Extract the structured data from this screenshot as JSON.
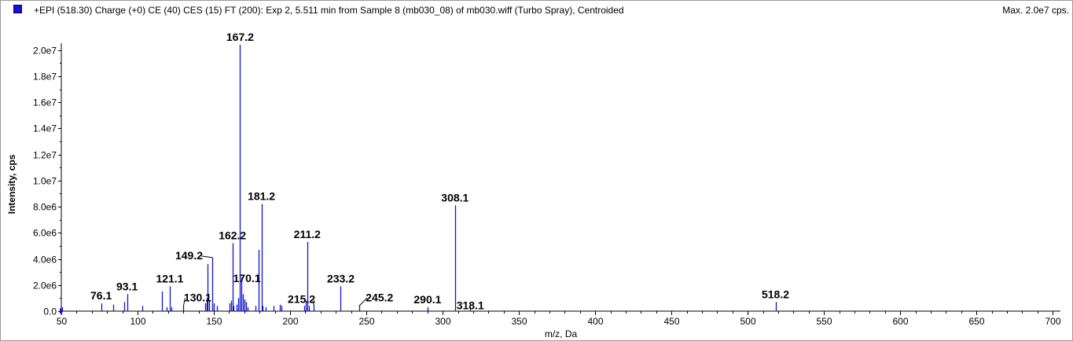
{
  "header": {
    "title": "+EPI (518.30) Charge (+0) CE (40) CES (15) FT (200): Exp 2, 5.511 min from Sample 8 (mb030_08) of mb030.wiff (Turbo Spray), Centroided",
    "max_label": "Max. 2.0e7 cps.",
    "series_color": "#1414c8"
  },
  "chart_data": {
    "type": "bar",
    "title": "",
    "xlabel": "m/z, Da",
    "ylabel": "Intensity, cps",
    "xlim": [
      50,
      705
    ],
    "ylim": [
      0,
      20400000
    ],
    "grid": false,
    "bar_color": "#1414c8",
    "x_ticks": [
      50,
      100,
      150,
      200,
      250,
      300,
      350,
      400,
      450,
      500,
      550,
      600,
      650,
      700
    ],
    "x_tick_labels": [
      "50",
      "100",
      "150",
      "200",
      "250",
      "300",
      "350",
      "400",
      "450",
      "500",
      "550",
      "600",
      "650",
      "700"
    ],
    "y_ticks": [
      0,
      2000000,
      4000000,
      6000000,
      8000000,
      10000000,
      12000000,
      14000000,
      16000000,
      18000000,
      20000000
    ],
    "y_tick_labels": [
      "0.0",
      "2.0e6",
      "4.0e6",
      "6.0e6",
      "8.0e6",
      "1.0e7",
      "1.2e7",
      "1.4e7",
      "1.6e7",
      "1.8e7",
      "2.0e7"
    ],
    "peaks": [
      {
        "mz": 50.3,
        "intensity": 300000
      },
      {
        "mz": 76.1,
        "intensity": 600000
      },
      {
        "mz": 84.1,
        "intensity": 500000
      },
      {
        "mz": 91.1,
        "intensity": 700000
      },
      {
        "mz": 93.1,
        "intensity": 1300000
      },
      {
        "mz": 103.1,
        "intensity": 400000
      },
      {
        "mz": 116.1,
        "intensity": 1500000
      },
      {
        "mz": 119.1,
        "intensity": 300000
      },
      {
        "mz": 121.1,
        "intensity": 1900000
      },
      {
        "mz": 122.1,
        "intensity": 300000
      },
      {
        "mz": 130.1,
        "intensity": 400000
      },
      {
        "mz": 144.1,
        "intensity": 600000
      },
      {
        "mz": 145.1,
        "intensity": 1000000
      },
      {
        "mz": 146.1,
        "intensity": 3600000
      },
      {
        "mz": 147.1,
        "intensity": 800000
      },
      {
        "mz": 149.2,
        "intensity": 4100000
      },
      {
        "mz": 150.1,
        "intensity": 600000
      },
      {
        "mz": 152.1,
        "intensity": 400000
      },
      {
        "mz": 160.1,
        "intensity": 600000
      },
      {
        "mz": 161.1,
        "intensity": 800000
      },
      {
        "mz": 162.2,
        "intensity": 5200000
      },
      {
        "mz": 163.1,
        "intensity": 400000
      },
      {
        "mz": 165.1,
        "intensity": 500000
      },
      {
        "mz": 166.1,
        "intensity": 1000000
      },
      {
        "mz": 167.2,
        "intensity": 20400000
      },
      {
        "mz": 168.1,
        "intensity": 2600000
      },
      {
        "mz": 169.1,
        "intensity": 1300000
      },
      {
        "mz": 170.1,
        "intensity": 900000
      },
      {
        "mz": 171.1,
        "intensity": 700000
      },
      {
        "mz": 172.1,
        "intensity": 300000
      },
      {
        "mz": 177.1,
        "intensity": 400000
      },
      {
        "mz": 179.1,
        "intensity": 4700000
      },
      {
        "mz": 181.2,
        "intensity": 8200000
      },
      {
        "mz": 182.1,
        "intensity": 400000
      },
      {
        "mz": 184.1,
        "intensity": 300000
      },
      {
        "mz": 189.1,
        "intensity": 400000
      },
      {
        "mz": 193.1,
        "intensity": 500000
      },
      {
        "mz": 194.1,
        "intensity": 400000
      },
      {
        "mz": 209.1,
        "intensity": 400000
      },
      {
        "mz": 210.1,
        "intensity": 800000
      },
      {
        "mz": 211.2,
        "intensity": 5300000
      },
      {
        "mz": 212.1,
        "intensity": 400000
      },
      {
        "mz": 215.2,
        "intensity": 500000
      },
      {
        "mz": 233.2,
        "intensity": 1900000
      },
      {
        "mz": 245.2,
        "intensity": 400000
      },
      {
        "mz": 290.1,
        "intensity": 300000
      },
      {
        "mz": 308.1,
        "intensity": 8100000
      },
      {
        "mz": 318.1,
        "intensity": 200000
      },
      {
        "mz": 518.2,
        "intensity": 700000
      }
    ],
    "peak_labels": [
      {
        "text": "76.1",
        "mz": 76.1
      },
      {
        "text": "93.1",
        "mz": 93.1
      },
      {
        "text": "121.1",
        "mz": 121.1
      },
      {
        "text": "130.1",
        "mz": 130.1
      },
      {
        "text": "149.2",
        "mz": 149.2
      },
      {
        "text": "162.2",
        "mz": 162.2
      },
      {
        "text": "167.2",
        "mz": 167.2
      },
      {
        "text": "170.1",
        "mz": 170.1
      },
      {
        "text": "181.2",
        "mz": 181.2
      },
      {
        "text": "211.2",
        "mz": 211.2
      },
      {
        "text": "215.2",
        "mz": 215.2
      },
      {
        "text": "233.2",
        "mz": 233.2
      },
      {
        "text": "245.2",
        "mz": 245.2
      },
      {
        "text": "290.1",
        "mz": 290.1
      },
      {
        "text": "308.1",
        "mz": 308.1
      },
      {
        "text": "318.1",
        "mz": 318.1
      },
      {
        "text": "518.2",
        "mz": 518.2
      }
    ]
  }
}
